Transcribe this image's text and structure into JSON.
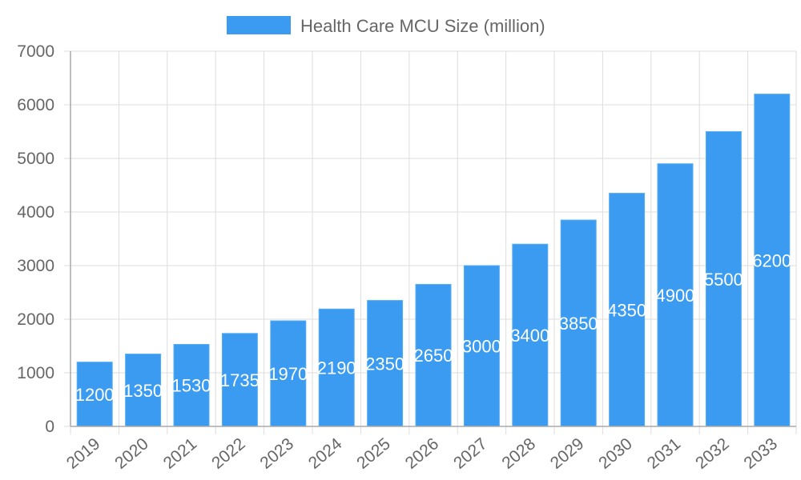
{
  "chart_data": {
    "type": "bar",
    "title": "",
    "xlabel": "",
    "ylabel": "",
    "categories": [
      "2019",
      "2020",
      "2021",
      "2022",
      "2023",
      "2024",
      "2025",
      "2026",
      "2027",
      "2028",
      "2029",
      "2030",
      "2031",
      "2032",
      "2033"
    ],
    "series": [
      {
        "name": "Health Care MCU Size (million)",
        "values": [
          1200,
          1350,
          1530,
          1735,
          1970,
          2190,
          2350,
          2650,
          3000,
          3400,
          3850,
          4350,
          4900,
          5500,
          6200
        ],
        "color": "#3a9bf0"
      }
    ],
    "ylim": [
      0,
      7000
    ],
    "yticks": [
      0,
      1000,
      2000,
      3000,
      4000,
      5000,
      6000,
      7000
    ],
    "grid": true,
    "legend": "top-center",
    "data_labels": true
  }
}
